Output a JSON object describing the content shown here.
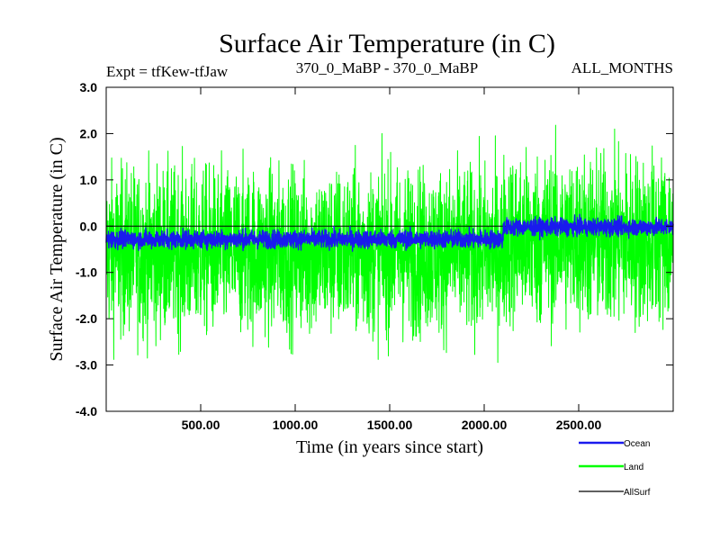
{
  "chart_data": {
    "type": "line",
    "title": "Surface Air Temperature (in C)",
    "subtitle_left": "Expt = tfKew-tfJaw",
    "subtitle_center": "370_0_MaBP - 370_0_MaBP",
    "subtitle_right": "ALL_MONTHS",
    "xlabel": "Time (in years since start)",
    "ylabel": "Surface Air Temperature (in C)",
    "xlim": [
      0,
      3000
    ],
    "ylim": [
      -4.0,
      3.0
    ],
    "x_ticks": [
      {
        "value": 500,
        "label": "500.00"
      },
      {
        "value": 1000,
        "label": "1000.00"
      },
      {
        "value": 1500,
        "label": "1500.00"
      },
      {
        "value": 2000,
        "label": "2000.00"
      },
      {
        "value": 2500,
        "label": "2500.00"
      }
    ],
    "y_ticks": [
      {
        "value": 3.0,
        "label": "3.0"
      },
      {
        "value": 2.0,
        "label": "2.0"
      },
      {
        "value": 1.0,
        "label": "1.0"
      },
      {
        "value": 0.0,
        "label": "0.0"
      },
      {
        "value": -1.0,
        "label": "-1.0"
      },
      {
        "value": -2.0,
        "label": "-2.0"
      },
      {
        "value": -3.0,
        "label": "-3.0"
      },
      {
        "value": -4.0,
        "label": "-4.0"
      }
    ],
    "series": [
      {
        "name": "Land",
        "color": "#00ff00",
        "regimes": [
          {
            "x_start": 0,
            "x_end": 2100,
            "mean": -0.55,
            "typical_range": [
              -2.2,
              1.0
            ],
            "extremes": [
              -3.42,
              2.0
            ]
          },
          {
            "x_start": 2100,
            "x_end": 3000,
            "mean": -0.3,
            "typical_range": [
              -1.7,
              1.6
            ],
            "extremes": [
              -3.05,
              2.95
            ]
          }
        ]
      },
      {
        "name": "Ocean",
        "color": "#1a1aee",
        "regimes": [
          {
            "x_start": 0,
            "x_end": 2100,
            "mean": -0.28,
            "typical_range": [
              -0.45,
              -0.1
            ],
            "extremes": [
              -0.6,
              0.12
            ]
          },
          {
            "x_start": 2100,
            "x_end": 3000,
            "mean": -0.02,
            "typical_range": [
              -0.18,
              0.15
            ],
            "extremes": [
              -0.3,
              0.28
            ]
          }
        ]
      },
      {
        "name": "AllSurf",
        "color": "#000000",
        "values_note": "",
        "regimes": [
          {
            "x_start": 0,
            "x_end": 3000,
            "mean": 0.0,
            "typical_range": [
              0.0,
              0.0
            ],
            "extremes": [
              0.0,
              0.0
            ]
          }
        ]
      }
    ],
    "legend": {
      "placement": "bottom-right",
      "entries": [
        {
          "label": "Ocean",
          "color": "#1a1aee"
        },
        {
          "label": "Land",
          "color": "#00ff00"
        },
        {
          "label": "AllSurf",
          "color": "#000000"
        }
      ]
    },
    "grid": false
  }
}
